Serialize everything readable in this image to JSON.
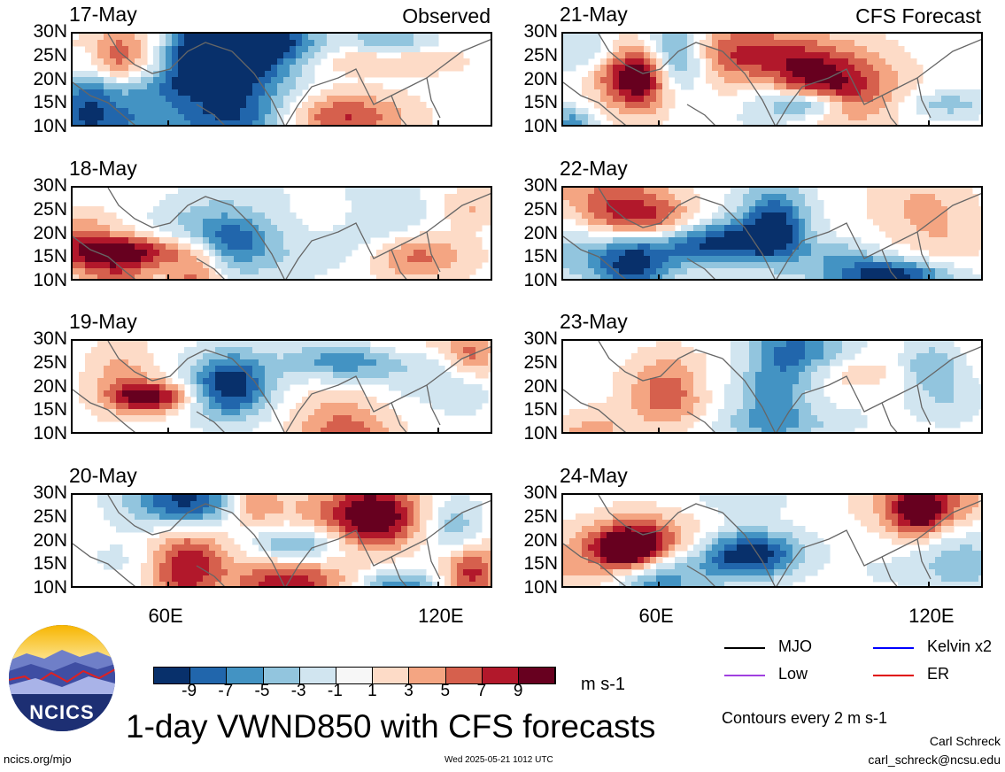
{
  "chart_data": {
    "type": "heatmap",
    "title": "1-day VWND850 with CFS forecasts",
    "units": "m s-1",
    "x_ticks": [
      "60E",
      "120E"
    ],
    "y_ticks": [
      "30N",
      "25N",
      "20N",
      "15N",
      "10N"
    ],
    "panels_observed": [
      "17-May",
      "18-May",
      "19-May",
      "20-May"
    ],
    "panels_forecast": [
      "21-May",
      "22-May",
      "23-May",
      "24-May"
    ],
    "label_observed": "Observed",
    "label_forecast": "CFS Forecast",
    "colorbar": {
      "ticks": [
        "-9",
        "-7",
        "-5",
        "-3",
        "-1",
        "1",
        "3",
        "5",
        "7",
        "9"
      ],
      "colors": [
        "#08306b",
        "#2166ac",
        "#4393c3",
        "#92c5de",
        "#d1e5f0",
        "#f7f7f7",
        "#fddbc7",
        "#f4a582",
        "#d6604d",
        "#b2182b",
        "#67001f"
      ]
    },
    "legend": [
      {
        "label": "MJO",
        "color": "#000000"
      },
      {
        "label": "Kelvin x2",
        "color": "#0000ff"
      },
      {
        "label": "Low",
        "color": "#a040e0"
      },
      {
        "label": "ER",
        "color": "#e00000"
      }
    ],
    "contour_note": "Contours every 2 m s-1"
  },
  "footer": {
    "logo_text": "NCICS",
    "site": "ncics.org/mjo",
    "timestamp": "Wed 2025-05-21 1012 UTC",
    "author": "Carl Schreck",
    "email": "carl_schreck@ncsu.edu"
  }
}
